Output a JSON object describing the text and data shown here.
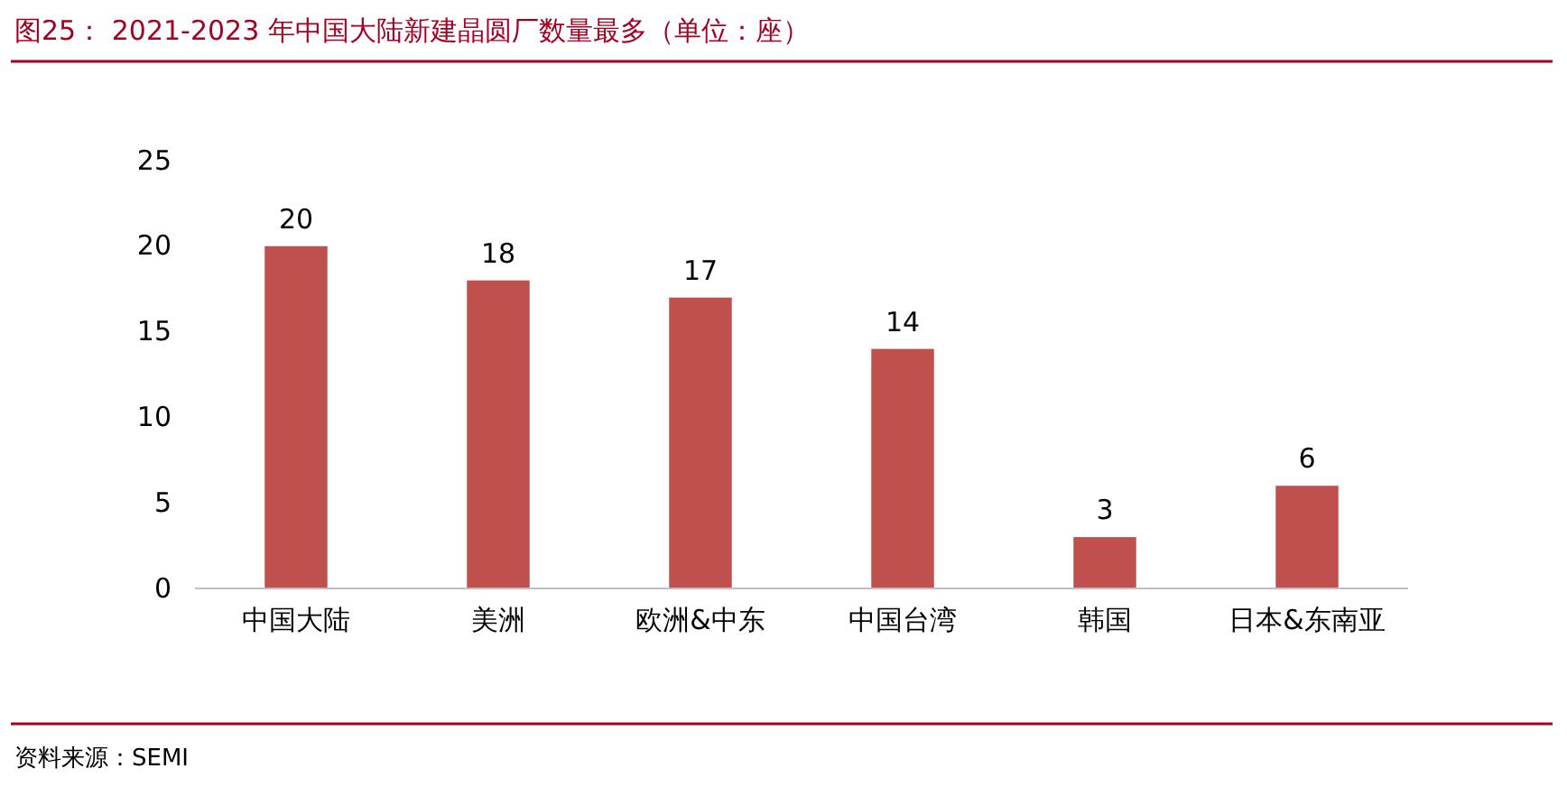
{
  "chart_data": {
    "type": "bar",
    "title": "图25： 2021-2023 年中国大陆新建晶圆厂数量最多（单位：座）",
    "categories": [
      "中国大陆",
      "美洲",
      "欧洲&中东",
      "中国台湾",
      "韩国",
      "日本&东南亚"
    ],
    "values": [
      20,
      18,
      17,
      14,
      3,
      6
    ],
    "color": "#c0504d",
    "ylim": [
      0,
      25
    ],
    "yticks": [
      0,
      5,
      10,
      15,
      20,
      25
    ],
    "grid": false,
    "data_labels": true,
    "annotations": [
      "资料来源：SEMI"
    ]
  }
}
